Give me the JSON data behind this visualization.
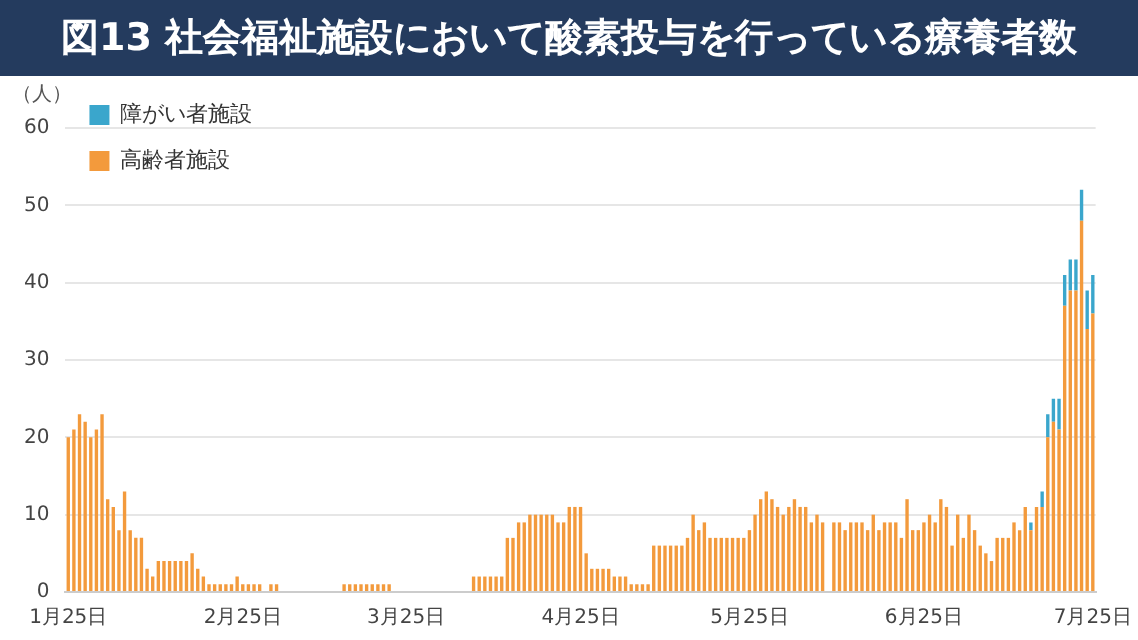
{
  "chart_data": {
    "type": "bar",
    "title": "図13 社会福祉施設において酸素投与を行っている療養者数",
    "ylabel": "（人）",
    "categories": [
      "1月25日",
      null,
      null,
      null,
      null,
      null,
      null,
      null,
      null,
      null,
      null,
      null,
      null,
      null,
      null,
      null,
      null,
      null,
      null,
      null,
      null,
      null,
      null,
      null,
      null,
      null,
      null,
      null,
      null,
      null,
      null,
      "2月25日",
      null,
      null,
      null,
      null,
      null,
      null,
      null,
      null,
      null,
      null,
      null,
      null,
      null,
      null,
      null,
      null,
      null,
      null,
      null,
      null,
      null,
      null,
      null,
      null,
      null,
      null,
      null,
      null,
      "3月25日",
      null,
      null,
      null,
      null,
      null,
      null,
      null,
      null,
      null,
      null,
      null,
      null,
      null,
      null,
      null,
      null,
      null,
      null,
      null,
      null,
      null,
      null,
      null,
      null,
      null,
      null,
      null,
      null,
      null,
      null,
      "4月25日",
      null,
      null,
      null,
      null,
      null,
      null,
      null,
      null,
      null,
      null,
      null,
      null,
      null,
      null,
      null,
      null,
      null,
      null,
      null,
      null,
      null,
      null,
      null,
      null,
      null,
      null,
      null,
      null,
      null,
      "5月25日",
      null,
      null,
      null,
      null,
      null,
      null,
      null,
      null,
      null,
      null,
      null,
      null,
      null,
      null,
      null,
      null,
      null,
      null,
      null,
      null,
      null,
      null,
      null,
      null,
      null,
      null,
      null,
      null,
      null,
      null,
      "6月25日",
      null,
      null,
      null,
      null,
      null,
      null,
      null,
      null,
      null,
      null,
      null,
      null,
      null,
      null,
      null,
      null,
      null,
      null,
      null,
      null,
      null,
      null,
      null,
      null,
      null,
      null,
      null,
      null,
      null,
      "7月25日"
    ],
    "series": [
      {
        "name": "高齢者施設",
        "color": "#f39a3c",
        "values": [
          20,
          21,
          23,
          22,
          20,
          21,
          23,
          12,
          11,
          8,
          13,
          8,
          7,
          7,
          3,
          2,
          4,
          4,
          4,
          4,
          4,
          4,
          5,
          3,
          2,
          1,
          1,
          1,
          1,
          1,
          2,
          1,
          1,
          1,
          1,
          0,
          1,
          1,
          0,
          0,
          0,
          0,
          0,
          0,
          0,
          0,
          0,
          0,
          0,
          1,
          1,
          1,
          1,
          1,
          1,
          1,
          1,
          1,
          0,
          0,
          0,
          0,
          0,
          0,
          0,
          0,
          0,
          0,
          0,
          0,
          0,
          0,
          2,
          2,
          2,
          2,
          2,
          2,
          7,
          7,
          9,
          9,
          10,
          10,
          10,
          10,
          10,
          9,
          9,
          11,
          11,
          11,
          5,
          3,
          3,
          3,
          3,
          2,
          2,
          2,
          1,
          1,
          1,
          1,
          6,
          6,
          6,
          6,
          6,
          6,
          7,
          10,
          8,
          9,
          7,
          7,
          7,
          7,
          7,
          7,
          7,
          8,
          10,
          12,
          13,
          12,
          11,
          10,
          11,
          12,
          11,
          11,
          9,
          10,
          9,
          0,
          9,
          9,
          8,
          9,
          9,
          9,
          8,
          10,
          8,
          9,
          9,
          9,
          7,
          12,
          8,
          8,
          9,
          10,
          9,
          12,
          11,
          6,
          10,
          7,
          10,
          8,
          6,
          5,
          4,
          7,
          7,
          7,
          9,
          8,
          11,
          8,
          11,
          11,
          20,
          22,
          21,
          37,
          39,
          39,
          48,
          34,
          36
        ]
      },
      {
        "name": "障がい者施設",
        "color": "#3aa6cc",
        "values": [
          0,
          0,
          0,
          0,
          0,
          0,
          0,
          0,
          0,
          0,
          0,
          0,
          0,
          0,
          0,
          0,
          0,
          0,
          0,
          0,
          0,
          0,
          0,
          0,
          0,
          0,
          0,
          0,
          0,
          0,
          0,
          0,
          0,
          0,
          0,
          0,
          0,
          0,
          0,
          0,
          0,
          0,
          0,
          0,
          0,
          0,
          0,
          0,
          0,
          0,
          0,
          0,
          0,
          0,
          0,
          0,
          0,
          0,
          0,
          0,
          0,
          0,
          0,
          0,
          0,
          0,
          0,
          0,
          0,
          0,
          0,
          0,
          0,
          0,
          0,
          0,
          0,
          0,
          0,
          0,
          0,
          0,
          0,
          0,
          0,
          0,
          0,
          0,
          0,
          0,
          0,
          0,
          0,
          0,
          0,
          0,
          0,
          0,
          0,
          0,
          0,
          0,
          0,
          0,
          0,
          0,
          0,
          0,
          0,
          0,
          0,
          0,
          0,
          0,
          0,
          0,
          0,
          0,
          0,
          0,
          0,
          0,
          0,
          0,
          0,
          0,
          0,
          0,
          0,
          0,
          0,
          0,
          0,
          0,
          0,
          0,
          0,
          0,
          0,
          0,
          0,
          0,
          0,
          0,
          0,
          0,
          0,
          0,
          0,
          0,
          0,
          0,
          0,
          0,
          0,
          0,
          0,
          0,
          0,
          0,
          0,
          0,
          0,
          0,
          0,
          0,
          0,
          0,
          0,
          0,
          0,
          1,
          0,
          2,
          3,
          3,
          4,
          4,
          4,
          4,
          4,
          5,
          5
        ]
      }
    ],
    "stacked": true,
    "ylim": [
      0,
      60
    ],
    "yticks": [
      0,
      10,
      20,
      30,
      40,
      50,
      60
    ],
    "grid": "y",
    "legend": "top left"
  }
}
